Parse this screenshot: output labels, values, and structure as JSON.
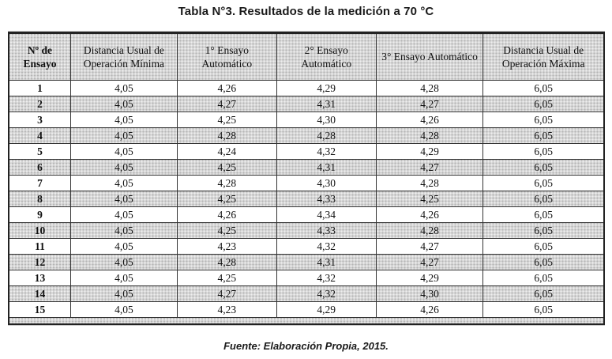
{
  "title": "Tabla N°3. Resultados de la medición a 70 °C",
  "footer": "Fuente: Elaboración Propia, 2015.",
  "colors": {
    "shaded_row": "#d6d6d6",
    "border": "#333333",
    "outer_border": "#222222",
    "text": "#111111"
  },
  "chart_data": {
    "type": "table",
    "title": "Tabla N°3. Resultados de la medición a 70 °C",
    "columns": [
      "Nº de Ensayo",
      "Distancia Usual de Operación Mínima",
      "1° Ensayo Automático",
      "2° Ensayo Automático",
      "3° Ensayo Automático",
      "Distancia Usual de Operación Máxima"
    ],
    "rows": [
      [
        "1",
        "4,05",
        "4,26",
        "4,29",
        "4,28",
        "6,05"
      ],
      [
        "2",
        "4,05",
        "4,27",
        "4,31",
        "4,27",
        "6,05"
      ],
      [
        "3",
        "4,05",
        "4,25",
        "4,30",
        "4,26",
        "6,05"
      ],
      [
        "4",
        "4,05",
        "4,28",
        "4,28",
        "4,28",
        "6,05"
      ],
      [
        "5",
        "4,05",
        "4,24",
        "4,32",
        "4,29",
        "6,05"
      ],
      [
        "6",
        "4,05",
        "4,25",
        "4,31",
        "4,27",
        "6,05"
      ],
      [
        "7",
        "4,05",
        "4,28",
        "4,30",
        "4,28",
        "6,05"
      ],
      [
        "8",
        "4,05",
        "4,25",
        "4,33",
        "4,25",
        "6,05"
      ],
      [
        "9",
        "4,05",
        "4,26",
        "4,34",
        "4,26",
        "6,05"
      ],
      [
        "10",
        "4,05",
        "4,25",
        "4,33",
        "4,28",
        "6,05"
      ],
      [
        "11",
        "4,05",
        "4,23",
        "4,32",
        "4,27",
        "6,05"
      ],
      [
        "12",
        "4,05",
        "4,28",
        "4,31",
        "4,27",
        "6,05"
      ],
      [
        "13",
        "4,05",
        "4,25",
        "4,32",
        "4,29",
        "6,05"
      ],
      [
        "14",
        "4,05",
        "4,27",
        "4,32",
        "4,30",
        "6,05"
      ],
      [
        "15",
        "4,05",
        "4,23",
        "4,29",
        "4,26",
        "6,05"
      ]
    ]
  },
  "table": {
    "columns": [
      {
        "label": "Nº de Ensayo"
      },
      {
        "label": "Distancia Usual de Operación Mínima"
      },
      {
        "label": "1° Ensayo Automático"
      },
      {
        "label": "2° Ensayo Automático"
      },
      {
        "label": "3° Ensayo Automático"
      },
      {
        "label": "Distancia Usual de Operación Máxima"
      }
    ]
  }
}
